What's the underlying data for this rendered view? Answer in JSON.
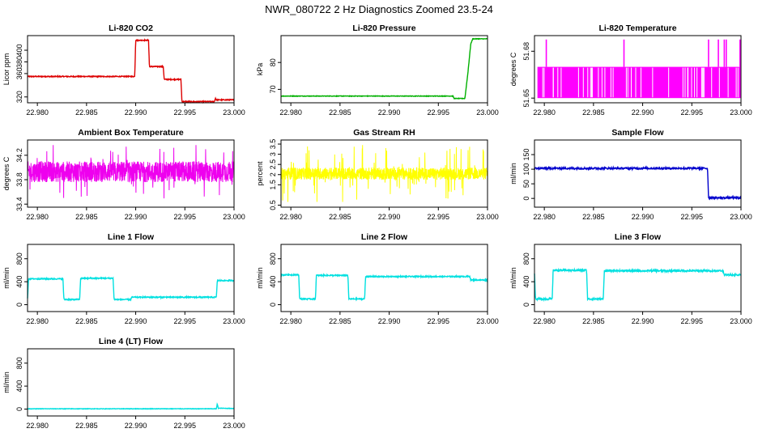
{
  "figure_title": "NWR_080722  2 Hz Diagnostics Zoomed 23.5-24",
  "chart_data": [
    {
      "type": "line",
      "title": "Li-820 CO2",
      "ylabel": "Licor ppm",
      "color": "#dd0000",
      "xlim": [
        22.979,
        23.0
      ],
      "x_ticks": [
        "22.980",
        "22.985",
        "22.990",
        "22.995",
        "23.000"
      ],
      "ylim": [
        310,
        425
      ],
      "y_ticks": [
        320,
        360,
        380,
        400
      ],
      "noise": 0.8,
      "segments": [
        [
          22.979,
          355
        ],
        [
          22.98,
          355
        ],
        [
          22.9899,
          355
        ],
        [
          22.99,
          417
        ],
        [
          22.9913,
          417
        ],
        [
          22.9914,
          372
        ],
        [
          22.9928,
          372
        ],
        [
          22.9929,
          350
        ],
        [
          22.9946,
          350
        ],
        [
          22.9947,
          312
        ],
        [
          22.998,
          312
        ],
        [
          22.9981,
          318
        ],
        [
          22.9982,
          315
        ],
        [
          23.0,
          315
        ]
      ]
    },
    {
      "type": "line",
      "title": "Li-820 Pressure",
      "ylabel": "kPa",
      "color": "#00b000",
      "xlim": [
        22.979,
        23.0
      ],
      "x_ticks": [
        "22.980",
        "22.985",
        "22.990",
        "22.995",
        "23.000"
      ],
      "ylim": [
        65,
        90
      ],
      "y_ticks": [
        70,
        80
      ],
      "noise": 0.1,
      "segments": [
        [
          22.979,
          67.5
        ],
        [
          22.9965,
          67.5
        ],
        [
          22.9966,
          66.6
        ],
        [
          22.9977,
          66.6
        ],
        [
          22.998,
          76
        ],
        [
          22.9983,
          87
        ],
        [
          22.9985,
          88.8
        ],
        [
          23.0,
          88.8
        ]
      ]
    },
    {
      "type": "spikes",
      "title": "Li-820 Temperature",
      "ylabel": "degrees C",
      "color": "#ff00ff",
      "xlim": [
        22.979,
        23.0
      ],
      "x_ticks": [
        "22.980",
        "22.985",
        "22.990",
        "22.995",
        "23.000"
      ],
      "ylim": [
        51.647,
        51.69
      ],
      "y_ticks": [
        51.65,
        51.68
      ],
      "low": 51.65,
      "high": 51.67,
      "spike_high": 51.6875,
      "spike_x": [
        22.9802,
        22.9881,
        22.9967,
        22.9977,
        22.9983,
        22.9985,
        22.9999
      ]
    },
    {
      "type": "noise",
      "title": "Ambient Box Temperature",
      "ylabel": "degrees C",
      "color": "#ee00ee",
      "xlim": [
        22.979,
        23.0
      ],
      "x_ticks": [
        "22.980",
        "22.985",
        "22.990",
        "22.995",
        "23.000"
      ],
      "ylim": [
        33.35,
        34.45
      ],
      "y_ticks": [
        33.4,
        33.8,
        34.2
      ],
      "center": 33.93,
      "amp": 0.17,
      "spike_amp": 0.45
    },
    {
      "type": "noise",
      "title": "Gas Stream RH",
      "ylabel": "percent",
      "color": "#ffff00",
      "xlim": [
        22.979,
        23.0
      ],
      "x_ticks": [
        "22.980",
        "22.985",
        "22.990",
        "22.995",
        "23.000"
      ],
      "ylim": [
        0.4,
        3.7
      ],
      "y_ticks": [
        0.5,
        1.5,
        2.0,
        2.5,
        3.0,
        3.5
      ],
      "center": 2.05,
      "amp": 0.3,
      "spike_amp": 1.4
    },
    {
      "type": "line",
      "title": "Sample Flow",
      "ylabel": "ml/min",
      "color": "#0000cc",
      "xlim": [
        22.979,
        23.0
      ],
      "x_ticks": [
        "22.980",
        "22.985",
        "22.990",
        "22.995",
        "23.000"
      ],
      "ylim": [
        -30,
        200
      ],
      "y_ticks": [
        0,
        50,
        100,
        150
      ],
      "noise": 3,
      "segments": [
        [
          22.979,
          103
        ],
        [
          22.9966,
          103
        ],
        [
          22.9967,
          2
        ],
        [
          23.0,
          2
        ]
      ]
    },
    {
      "type": "line",
      "title": "Line 1 Flow",
      "ylabel": "ml/min",
      "color": "#00e0e0",
      "xlim": [
        22.979,
        23.0
      ],
      "x_ticks": [
        "22.980",
        "22.985",
        "22.990",
        "22.995",
        "23.000"
      ],
      "ylim": [
        -120,
        1050
      ],
      "y_ticks": [
        0,
        400,
        800
      ],
      "noise": 10,
      "segments": [
        [
          22.979,
          100
        ],
        [
          22.9791,
          450
        ],
        [
          22.9826,
          450
        ],
        [
          22.9827,
          90
        ],
        [
          22.9843,
          90
        ],
        [
          22.9844,
          460
        ],
        [
          22.9877,
          460
        ],
        [
          22.9878,
          90
        ],
        [
          22.9895,
          90
        ],
        [
          22.9896,
          130
        ],
        [
          22.9982,
          130
        ],
        [
          22.9983,
          420
        ],
        [
          23.0,
          420
        ]
      ]
    },
    {
      "type": "line",
      "title": "Line 2 Flow",
      "ylabel": "ml/min",
      "color": "#00e0e0",
      "xlim": [
        22.979,
        23.0
      ],
      "x_ticks": [
        "22.980",
        "22.985",
        "22.990",
        "22.995",
        "23.000"
      ],
      "ylim": [
        -120,
        1050
      ],
      "y_ticks": [
        0,
        400,
        800
      ],
      "noise": 10,
      "segments": [
        [
          22.979,
          520
        ],
        [
          22.9808,
          520
        ],
        [
          22.9809,
          100
        ],
        [
          22.9825,
          100
        ],
        [
          22.9826,
          510
        ],
        [
          22.9858,
          510
        ],
        [
          22.9859,
          100
        ],
        [
          22.9875,
          100
        ],
        [
          22.9876,
          490
        ],
        [
          22.9982,
          490
        ],
        [
          22.9983,
          430
        ],
        [
          23.0,
          430
        ]
      ]
    },
    {
      "type": "line",
      "title": "Line 3 Flow",
      "ylabel": "ml/min",
      "color": "#00e0e0",
      "xlim": [
        22.979,
        23.0
      ],
      "x_ticks": [
        "22.980",
        "22.985",
        "22.990",
        "22.995",
        "23.000"
      ],
      "ylim": [
        -120,
        1050
      ],
      "y_ticks": [
        0,
        400,
        800
      ],
      "noise": 15,
      "segments": [
        [
          22.979,
          550
        ],
        [
          22.9791,
          100
        ],
        [
          22.9808,
          100
        ],
        [
          22.9809,
          600
        ],
        [
          22.9843,
          600
        ],
        [
          22.9844,
          100
        ],
        [
          22.986,
          100
        ],
        [
          22.9861,
          590
        ],
        [
          22.9982,
          590
        ],
        [
          22.9983,
          520
        ],
        [
          23.0,
          520
        ]
      ]
    },
    {
      "type": "line",
      "title": "Line 4 (LT) Flow",
      "ylabel": "ml/min",
      "color": "#00e0e0",
      "xlim": [
        22.979,
        23.0
      ],
      "x_ticks": [
        "22.980",
        "22.985",
        "22.990",
        "22.995",
        "23.000"
      ],
      "ylim": [
        -120,
        1050
      ],
      "y_ticks": [
        0,
        400,
        800
      ],
      "noise": 4,
      "segments": [
        [
          22.979,
          5
        ],
        [
          22.9982,
          5
        ],
        [
          22.9983,
          90
        ],
        [
          22.9984,
          15
        ],
        [
          23.0,
          10
        ]
      ]
    }
  ]
}
